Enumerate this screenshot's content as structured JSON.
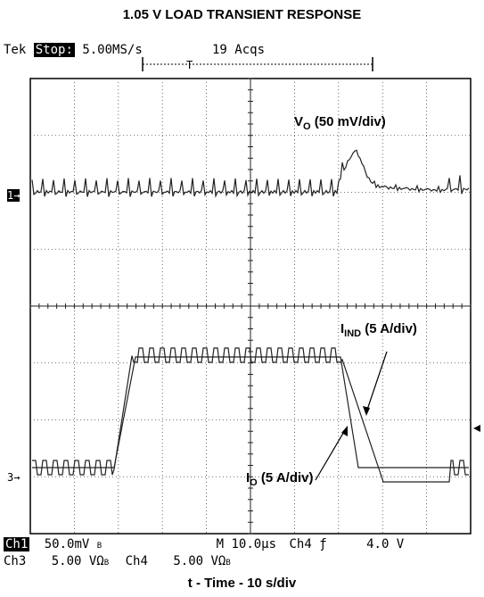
{
  "title": "1.05 V LOAD TRANSIENT RESPONSE",
  "scope": {
    "brand": "Tek",
    "state": "Stop:",
    "rate": "5.00MS/s",
    "acqs": "19 Acqs",
    "trigger_marker": "T"
  },
  "markers": {
    "ch1": "1→",
    "ch3": "3→"
  },
  "status": {
    "ch1_label": "Ch1",
    "ch1_scale": "50.0mV",
    "bw1": "B",
    "timebase": "M 10.0µs",
    "trig_source": "Ch4",
    "trig_slope": "ƒ",
    "trig_level": "4.0 V",
    "ch3_label": "Ch3",
    "ch3_scale": "5.00 VΩ",
    "bw3": "B",
    "ch4_label": "Ch4",
    "ch4_scale": "5.00 VΩ",
    "bw4": "B"
  },
  "chart_data": {
    "type": "line",
    "title": "1.05 V LOAD TRANSIENT RESPONSE",
    "xlabel": "t - Time - 10   s/div",
    "grid": true,
    "divisions": {
      "x": 10,
      "y": 8
    },
    "series": [
      {
        "name_main": "V",
        "name_sub": "O",
        "name_rest": "(50 mV/div)"
      },
      {
        "name_main": "I",
        "name_sub": "IND",
        "name_rest": "(5 A/div)"
      },
      {
        "name_main": "I",
        "name_sub": "O",
        "name_rest": "(5 A/div)"
      }
    ]
  }
}
